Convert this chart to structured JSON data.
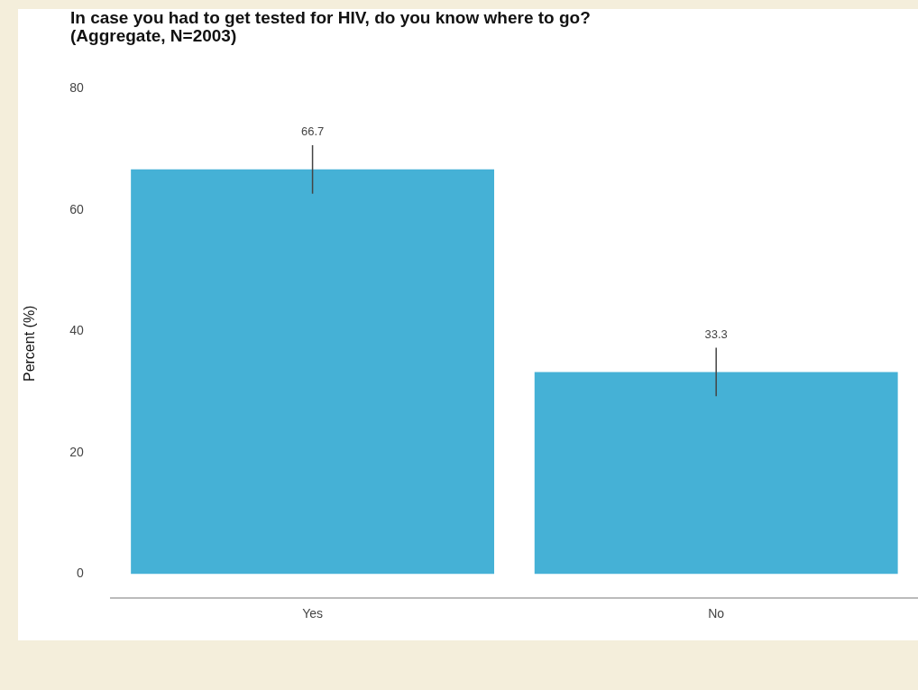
{
  "chart_data": {
    "type": "bar",
    "title": "In case you had to get tested for HIV, do you know where to go?\n(Aggregate, N=2003)",
    "ylabel": "Percent (%)",
    "categories": [
      "Yes",
      "No"
    ],
    "values": [
      66.7,
      33.3
    ],
    "errors": [
      4,
      4
    ],
    "color": "#45b1d6",
    "ylim": [
      -4,
      80
    ],
    "yticks": [
      0,
      20,
      40,
      60,
      80
    ],
    "grid": false,
    "legend": false,
    "data_labels": true
  }
}
